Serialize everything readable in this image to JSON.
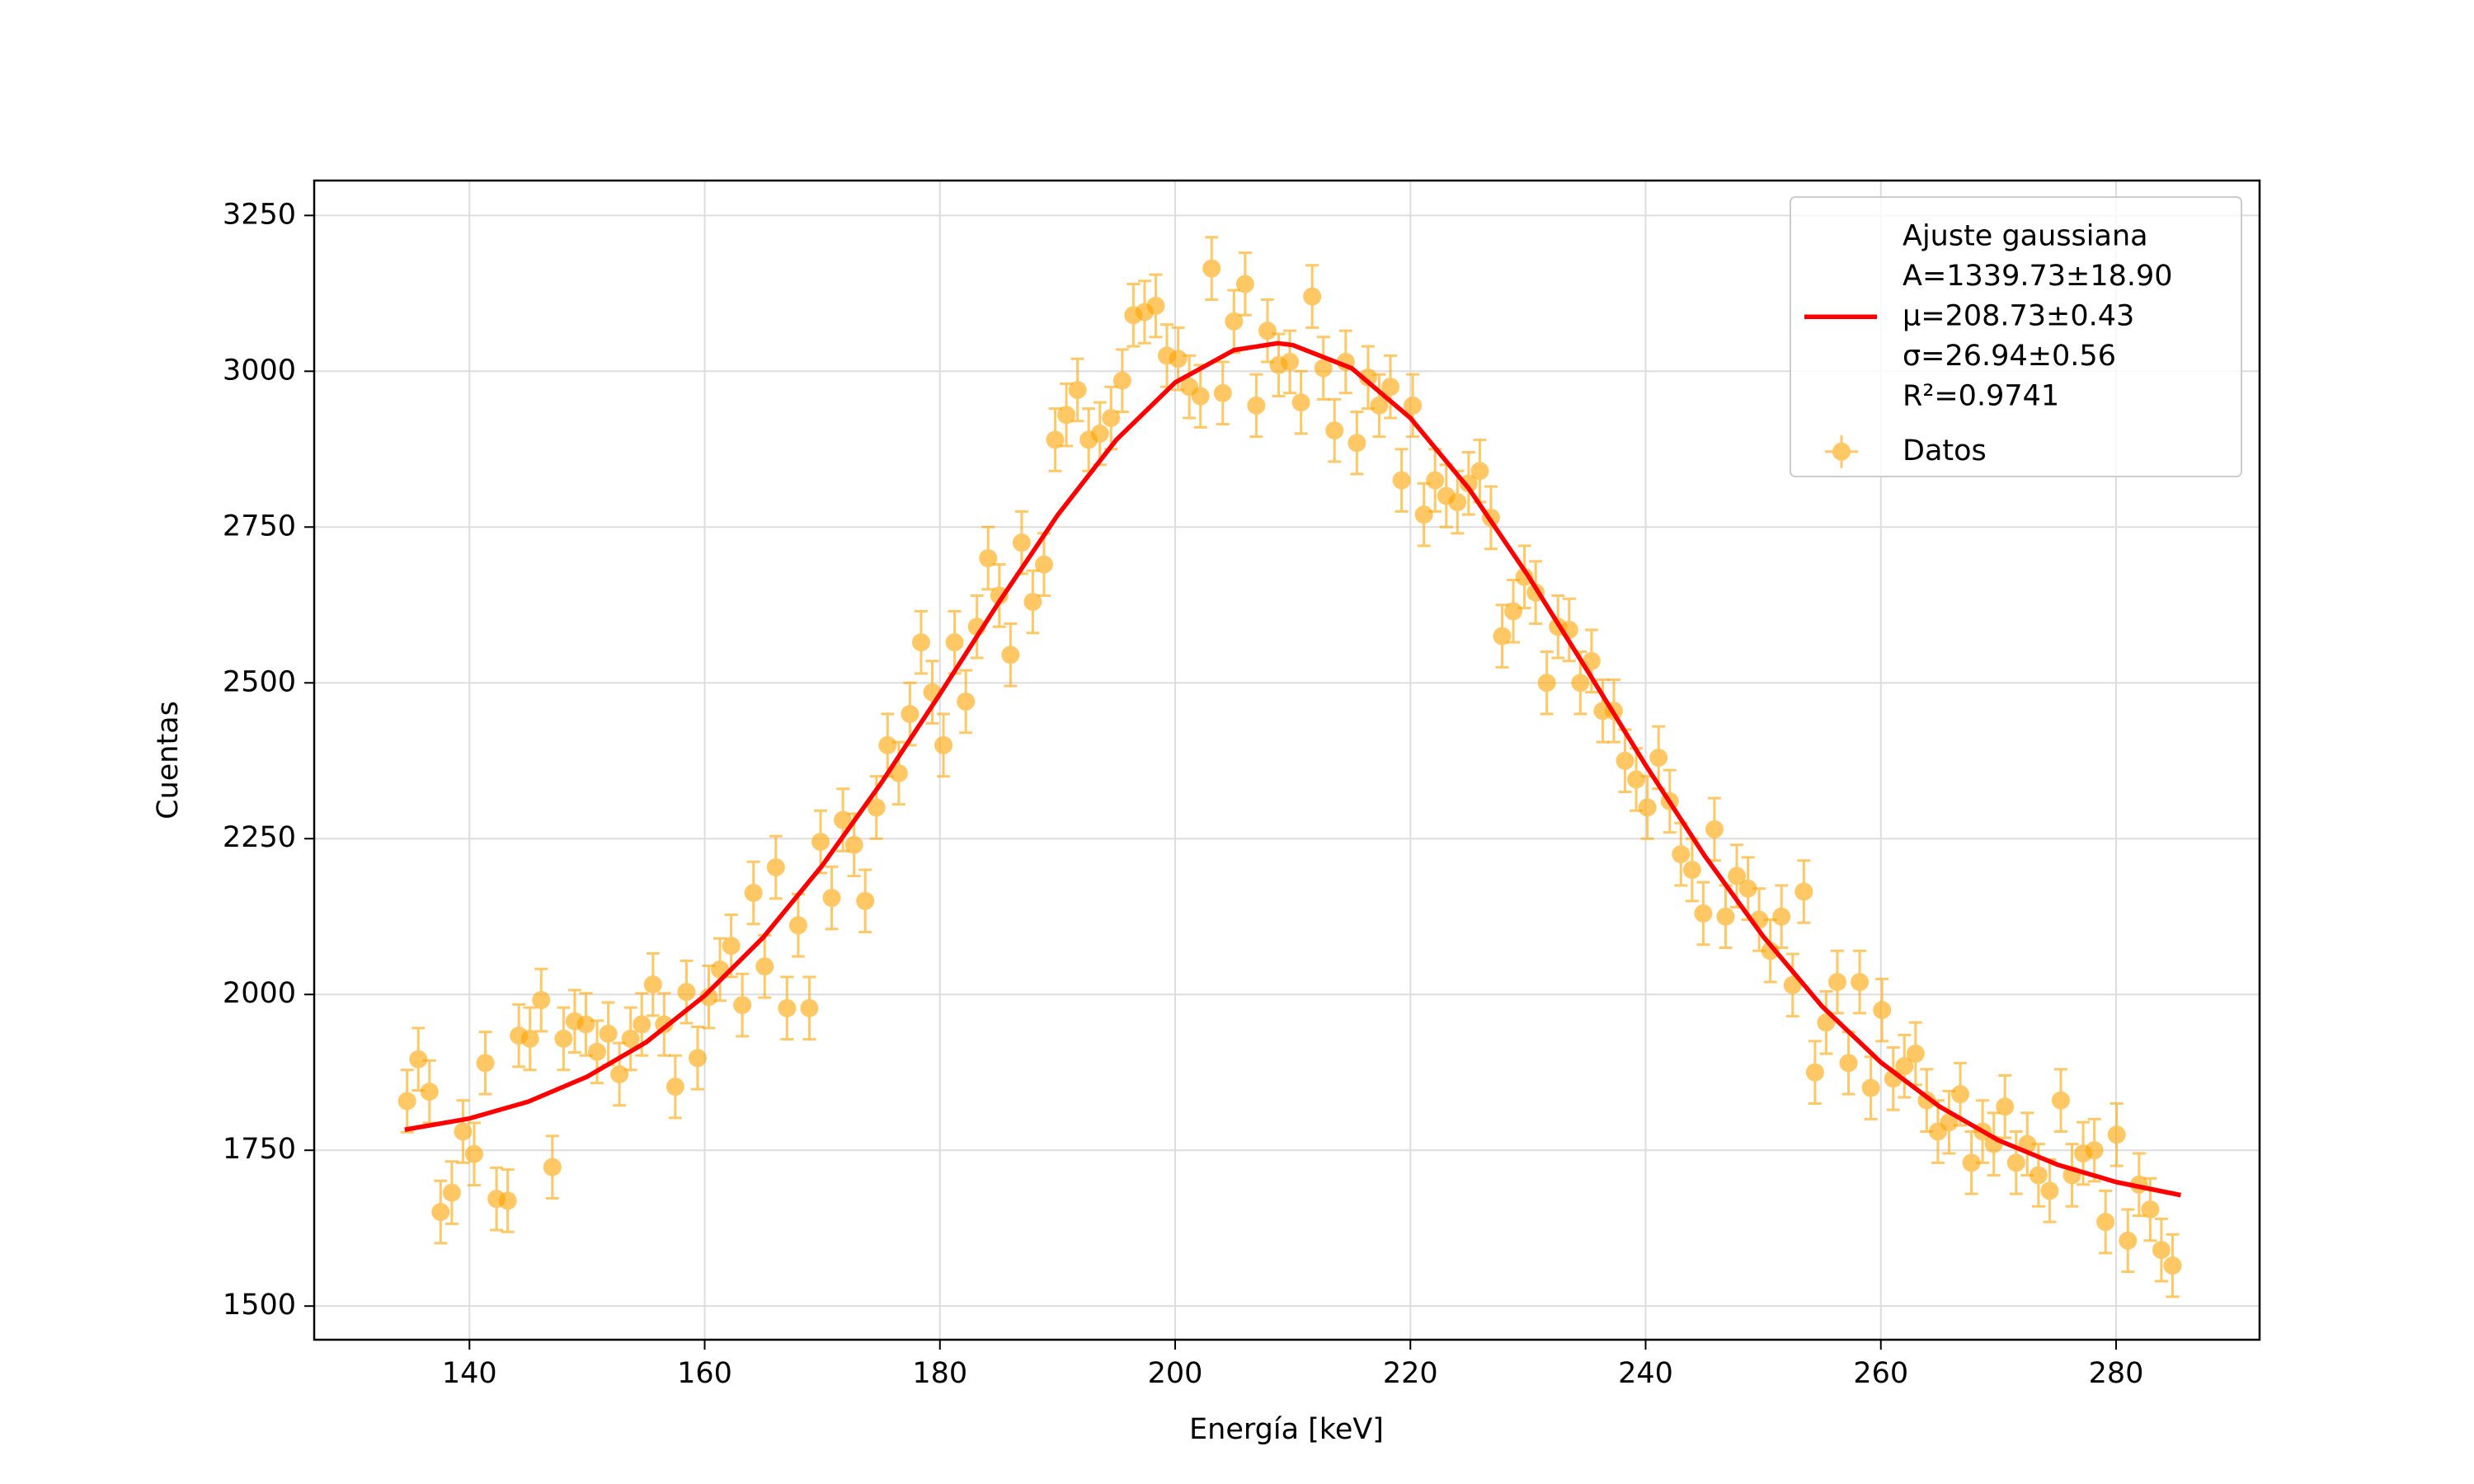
{
  "chart_data": {
    "type": "scatter",
    "x_label": "Energía [keV]",
    "y_label": "Cuentas",
    "xlim": [
      126.8,
      292.2
    ],
    "ylim": [
      1446,
      3306
    ],
    "xticks": [
      140,
      160,
      180,
      200,
      220,
      240,
      260,
      280
    ],
    "yticks": [
      1500,
      1750,
      2000,
      2250,
      2500,
      2750,
      3000,
      3250
    ],
    "grid": true,
    "legend": "upper right",
    "series": [
      {
        "name": [
          "Ajuste gaussiana",
          "A=1339.73±18.90",
          "μ=208.73±0.43",
          "σ=26.94±0.56",
          "R²=0.9741"
        ],
        "kind": "line",
        "color": "#ff0000",
        "x": [
          134.5,
          140,
          145,
          150,
          155,
          160,
          165,
          170,
          175,
          180,
          185,
          190,
          195,
          200,
          205,
          208.73,
          210,
          215,
          220,
          225,
          230,
          235,
          240,
          245,
          250,
          255,
          260,
          265,
          270,
          275,
          280,
          285.5
        ],
        "values": [
          1783,
          1801,
          1828,
          1868,
          1923,
          1998,
          2092,
          2207,
          2339,
          2482,
          2629,
          2769,
          2890,
          2982,
          3034,
          3045,
          3042,
          3005,
          2925,
          2811,
          2672,
          2521,
          2368,
          2223,
          2093,
          1981,
          1891,
          1820,
          1766,
          1727,
          1699,
          1678
        ]
      },
      {
        "name": [
          "Datos"
        ],
        "kind": "errorbar",
        "color": "#ffa500",
        "yerr": 50,
        "x": [
          134.7,
          135.65,
          136.6,
          137.55,
          138.5,
          139.45,
          140.4,
          141.35,
          142.3,
          143.25,
          144.2,
          145.15,
          146.1,
          147.05,
          148.0,
          148.95,
          149.9,
          150.85,
          151.8,
          152.75,
          153.7,
          154.65,
          155.6,
          156.55,
          157.5,
          158.45,
          159.4,
          160.35,
          161.3,
          162.25,
          163.2,
          164.15,
          165.1,
          166.05,
          167.0,
          167.95,
          168.9,
          169.85,
          170.8,
          171.75,
          172.7,
          173.65,
          174.6,
          175.55,
          176.5,
          177.45,
          178.4,
          179.35,
          180.3,
          181.25,
          182.2,
          183.15,
          184.1,
          185.05,
          186.0,
          186.95,
          187.9,
          188.85,
          189.8,
          190.75,
          191.7,
          192.65,
          193.6,
          194.55,
          195.5,
          196.45,
          197.4,
          198.35,
          199.3,
          200.25,
          201.2,
          202.15,
          203.1,
          204.05,
          205.0,
          205.95,
          206.9,
          207.85,
          208.8,
          209.75,
          210.7,
          211.65,
          212.6,
          213.55,
          214.5,
          215.45,
          216.4,
          217.35,
          218.3,
          219.25,
          220.2,
          221.15,
          222.1,
          223.05,
          224.0,
          224.95,
          225.9,
          226.85,
          227.8,
          228.75,
          229.7,
          230.65,
          231.6,
          232.55,
          233.5,
          234.45,
          235.4,
          236.35,
          237.3,
          238.25,
          239.2,
          240.15,
          241.1,
          242.05,
          243.0,
          243.95,
          244.9,
          245.85,
          246.8,
          247.75,
          248.7,
          249.65,
          250.6,
          251.55,
          252.5,
          253.45,
          254.4,
          255.35,
          256.3,
          257.25,
          258.2,
          259.15,
          260.1,
          261.05,
          262.0,
          262.95,
          263.9,
          264.85,
          265.8,
          266.75,
          267.7,
          268.65,
          269.6,
          270.55,
          271.5,
          272.45,
          273.4,
          274.35,
          275.3,
          276.25,
          277.2,
          278.15,
          279.1,
          280.05,
          281.0,
          281.95,
          282.9,
          283.85,
          284.8
        ],
        "values": [
          1829,
          1896,
          1844,
          1651,
          1682,
          1780,
          1744,
          1890,
          1672,
          1669,
          1934,
          1929,
          1991,
          1723,
          1929,
          1957,
          1952,
          1908,
          1937,
          1872,
          1929,
          1952,
          2016,
          1952,
          1852,
          2004,
          1898,
          1996,
          2040,
          2078,
          1983,
          2163,
          2045,
          2204,
          1978,
          2111,
          1978,
          2245,
          2155,
          2280,
          2240,
          2150,
          2300,
          2400,
          2355,
          2450,
          2565,
          2485,
          2400,
          2565,
          2470,
          2590,
          2700,
          2640,
          2545,
          2725,
          2630,
          2690,
          2890,
          2930,
          2970,
          2890,
          2900,
          2925,
          2985,
          3090,
          3095,
          3105,
          3025,
          3020,
          2975,
          2960,
          3165,
          2965,
          3080,
          3140,
          2945,
          3065,
          3010,
          3015,
          2950,
          3120,
          3005,
          2905,
          3015,
          2885,
          2990,
          2945,
          2975,
          2825,
          2945,
          2770,
          2825,
          2800,
          2790,
          2820,
          2840,
          2765,
          2575,
          2615,
          2670,
          2645,
          2500,
          2590,
          2585,
          2500,
          2535,
          2455,
          2455,
          2375,
          2345,
          2300,
          2380,
          2310,
          2225,
          2200,
          2130,
          2265,
          2125,
          2190,
          2170,
          2120,
          2070,
          2125,
          2015,
          2165,
          1875,
          1955,
          2020,
          1890,
          2020,
          1850,
          1975,
          1865,
          1885,
          1905,
          1830,
          1780,
          1795,
          1840,
          1730,
          1780,
          1760,
          1820,
          1730,
          1760,
          1710,
          1685,
          1830,
          1710,
          1745,
          1750,
          1635,
          1775,
          1605,
          1695,
          1655,
          1590,
          1565
        ]
      }
    ]
  }
}
